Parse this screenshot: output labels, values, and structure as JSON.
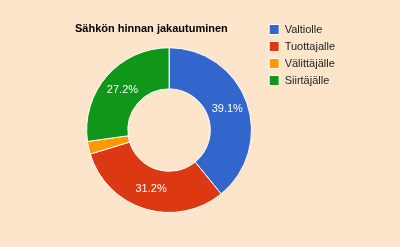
{
  "chart_data": {
    "type": "doughnut",
    "title": "Sähkön hinnan jakautuminen",
    "categories": [
      "Valtiolle",
      "Tuottajalle",
      "Välittäjälle",
      "Siirtäjälle"
    ],
    "values": [
      39.1,
      31.2,
      2.5,
      27.2
    ],
    "value_labels": [
      "39.1%",
      "31.2%",
      null,
      "27.2%"
    ],
    "colors": [
      "#3366cc",
      "#dc3912",
      "#ff9900",
      "#109618"
    ],
    "legend": "right",
    "data_labels": true
  }
}
